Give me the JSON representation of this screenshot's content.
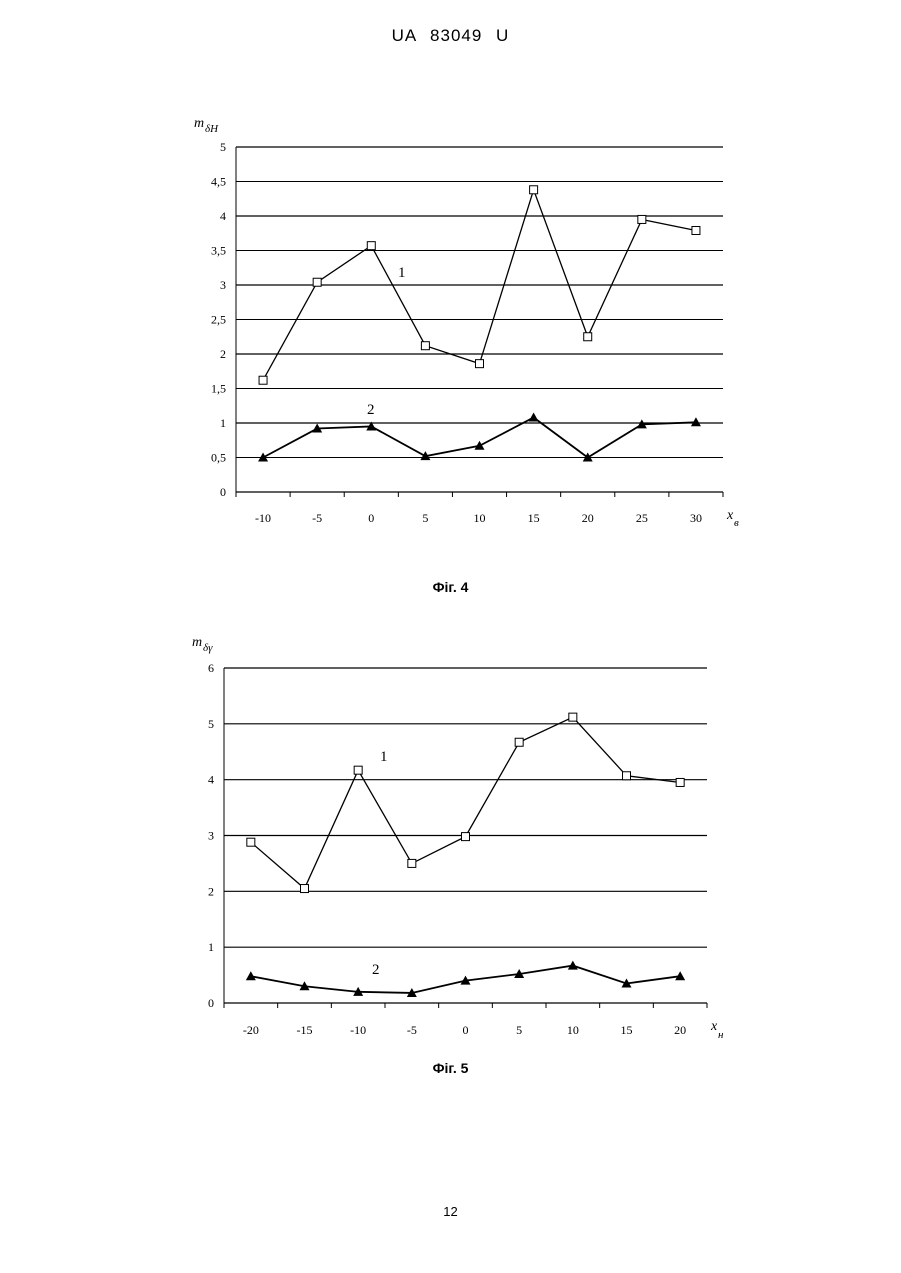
{
  "page": {
    "header": "UA  83049  U",
    "page_number": "12"
  },
  "figures": [
    {
      "caption": "Фіг. 4",
      "ylabel_var": "m",
      "ylabel_sub": "δH",
      "xlabel_var": "x",
      "xlabel_sub": "в"
    },
    {
      "caption": "Фіг. 5",
      "ylabel_var": "m",
      "ylabel_sub": "δγ",
      "xlabel_var": "x",
      "xlabel_sub": "н"
    }
  ],
  "chart_data": [
    {
      "type": "line",
      "title": "",
      "xlabel": "xв",
      "ylabel": "mδH",
      "categories": [
        "-10",
        "-5",
        "0",
        "5",
        "10",
        "15",
        "20",
        "25",
        "30"
      ],
      "ylim": [
        0,
        5
      ],
      "yticks": [
        0,
        0.5,
        1,
        1.5,
        2,
        2.5,
        3,
        3.5,
        4,
        4.5,
        5
      ],
      "ytick_labels": [
        "0",
        "0,5",
        "1",
        "1,5",
        "2",
        "2,5",
        "3",
        "3,5",
        "4",
        "4,5",
        "5"
      ],
      "grid": "horizontal",
      "legend": "none",
      "series": [
        {
          "name": "1",
          "marker": "open-square",
          "values": [
            1.62,
            3.04,
            3.57,
            2.12,
            1.86,
            4.38,
            2.25,
            3.95,
            3.79
          ]
        },
        {
          "name": "2",
          "marker": "filled-triangle",
          "values": [
            0.5,
            0.92,
            0.95,
            0.52,
            0.67,
            1.08,
            0.5,
            0.98,
            1.01
          ]
        }
      ]
    },
    {
      "type": "line",
      "title": "",
      "xlabel": "xн",
      "ylabel": "mδγ",
      "categories": [
        "-20",
        "-15",
        "-10",
        "-5",
        "0",
        "5",
        "10",
        "15",
        "20"
      ],
      "ylim": [
        0,
        6
      ],
      "yticks": [
        0,
        1,
        2,
        3,
        4,
        5,
        6
      ],
      "ytick_labels": [
        "0",
        "1",
        "2",
        "3",
        "4",
        "5",
        "6"
      ],
      "grid": "horizontal",
      "legend": "none",
      "series": [
        {
          "name": "1",
          "marker": "open-square",
          "values": [
            2.88,
            2.05,
            4.17,
            2.5,
            2.98,
            4.67,
            5.12,
            4.07,
            3.95
          ]
        },
        {
          "name": "2",
          "marker": "filled-triangle",
          "values": [
            0.48,
            0.3,
            0.2,
            0.18,
            0.4,
            0.52,
            0.67,
            0.35,
            0.48
          ]
        }
      ]
    }
  ]
}
